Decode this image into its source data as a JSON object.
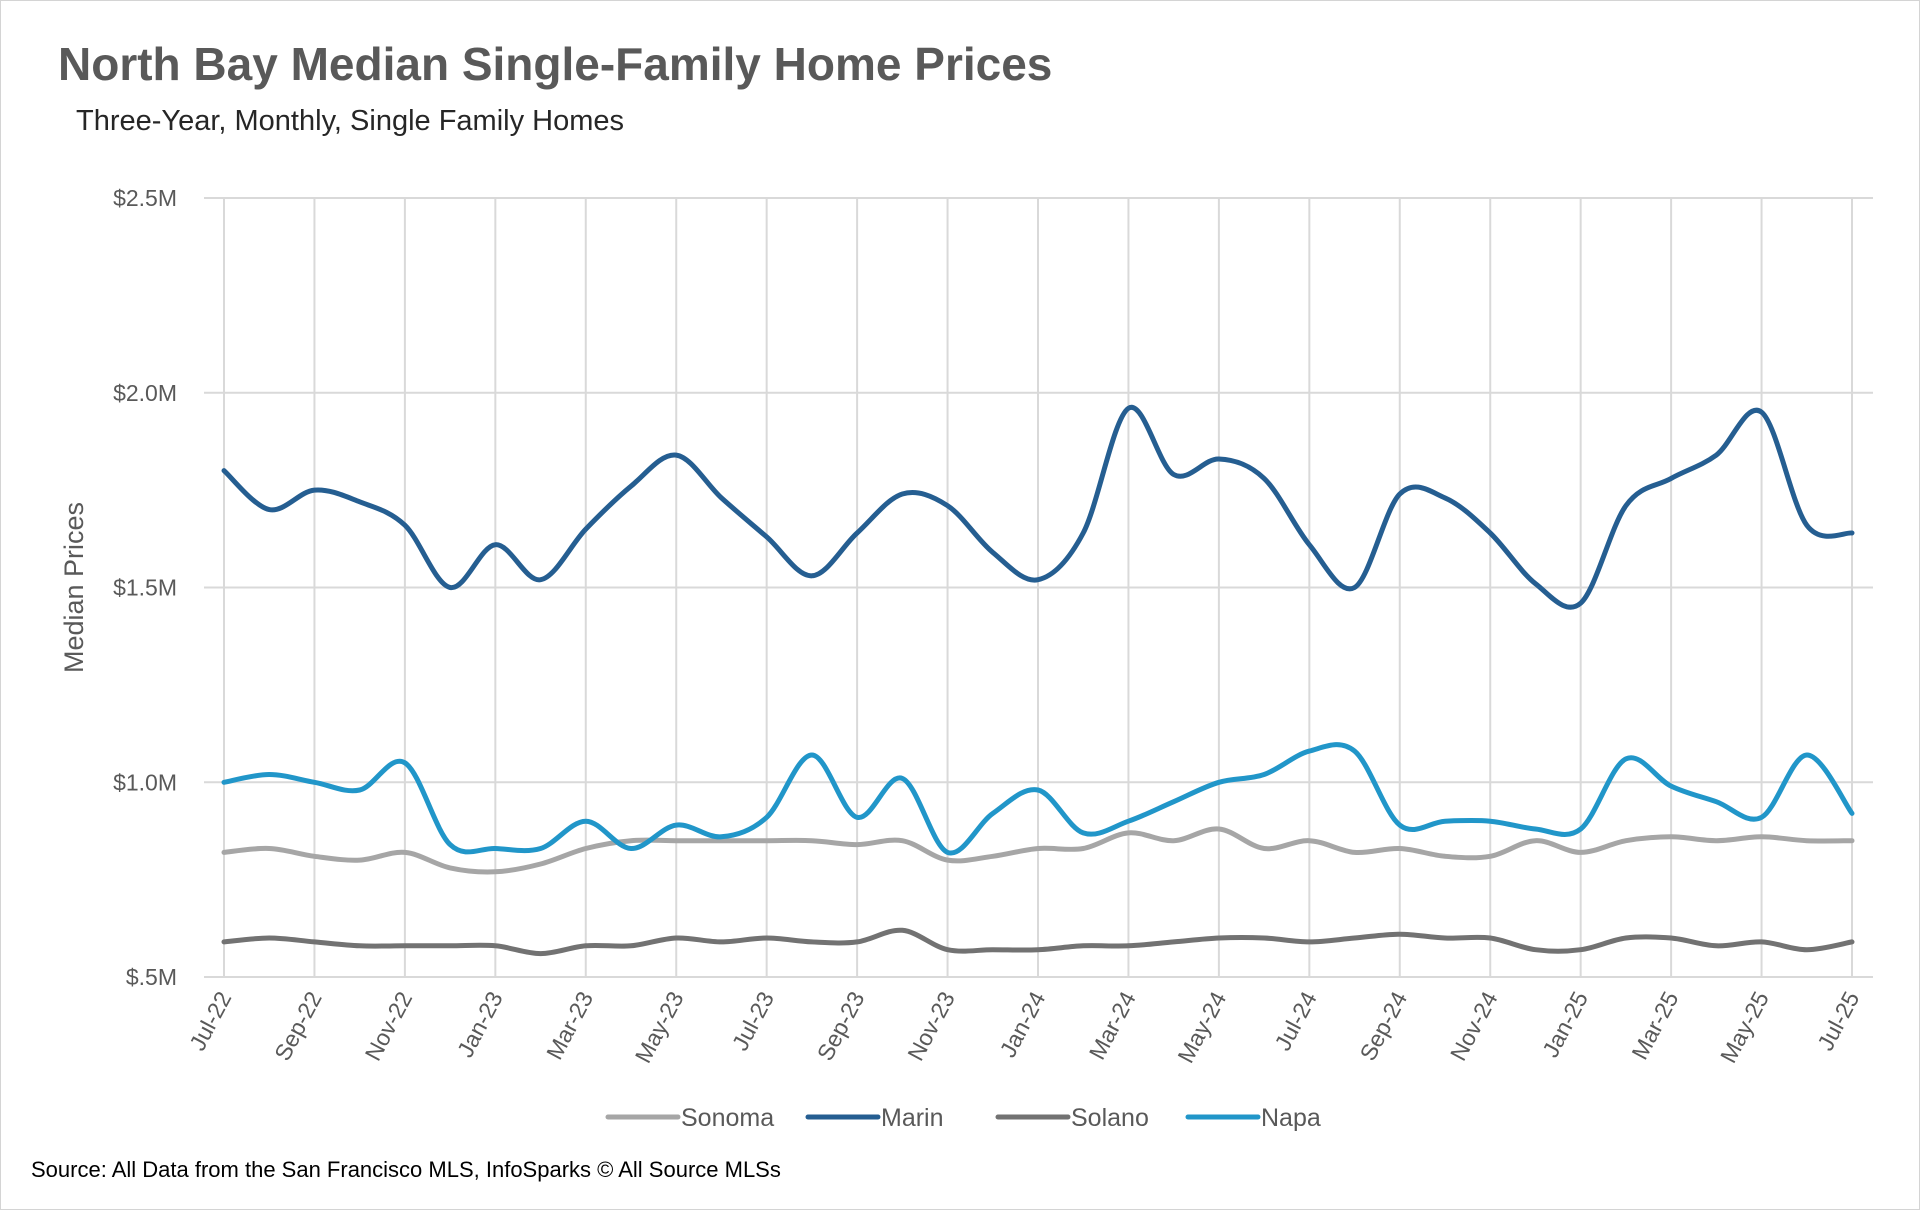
{
  "title": "North Bay Median Single-Family Home Prices",
  "subtitle": "Three-Year, Monthly, Single Family Homes",
  "source": "Source: All Data from the San Francisco MLS, InfoSparks © All Source MLSs",
  "chart_data": {
    "type": "line",
    "title": "North Bay Median Single-Family Home Prices",
    "subtitle": "Three-Year, Monthly, Single Family Homes",
    "xlabel": "",
    "ylabel": "Median Prices",
    "ylim": [
      0.5,
      2.5
    ],
    "y_unit": "millions of dollars",
    "yticks": [
      0.5,
      1.0,
      1.5,
      2.0,
      2.5
    ],
    "ytick_labels": [
      "$.5M",
      "$1.0M",
      "$1.5M",
      "$2.0M",
      "$2.5M"
    ],
    "grid": true,
    "legend_position": "bottom",
    "x": [
      "Jul-22",
      "Aug-22",
      "Sep-22",
      "Oct-22",
      "Nov-22",
      "Dec-22",
      "Jan-23",
      "Feb-23",
      "Mar-23",
      "Apr-23",
      "May-23",
      "Jun-23",
      "Jul-23",
      "Aug-23",
      "Sep-23",
      "Oct-23",
      "Nov-23",
      "Dec-23",
      "Jan-24",
      "Feb-24",
      "Mar-24",
      "Apr-24",
      "May-24",
      "Jun-24",
      "Jul-24",
      "Aug-24",
      "Sep-24",
      "Oct-24",
      "Nov-24",
      "Dec-24",
      "Jan-25",
      "Feb-25",
      "Mar-25",
      "Apr-25",
      "May-25",
      "Jun-25",
      "Jul-25"
    ],
    "xtick_labels": [
      "Jul-22",
      "Sep-22",
      "Nov-22",
      "Jan-23",
      "Mar-23",
      "May-23",
      "Jul-23",
      "Sep-23",
      "Nov-23",
      "Jan-24",
      "Mar-24",
      "May-24",
      "Jul-24",
      "Sep-24",
      "Nov-24",
      "Jan-25",
      "Mar-25",
      "May-25",
      "Jul-25"
    ],
    "series": [
      {
        "name": "Sonoma",
        "color": "#a6a6a6",
        "values": [
          0.82,
          0.83,
          0.81,
          0.8,
          0.82,
          0.78,
          0.77,
          0.79,
          0.83,
          0.85,
          0.85,
          0.85,
          0.85,
          0.85,
          0.84,
          0.85,
          0.8,
          0.81,
          0.83,
          0.83,
          0.87,
          0.85,
          0.88,
          0.83,
          0.85,
          0.82,
          0.83,
          0.81,
          0.81,
          0.85,
          0.82,
          0.85,
          0.86,
          0.85,
          0.86,
          0.85,
          0.85
        ]
      },
      {
        "name": "Marin",
        "color": "#255e91",
        "values": [
          1.8,
          1.7,
          1.75,
          1.72,
          1.66,
          1.5,
          1.61,
          1.52,
          1.65,
          1.76,
          1.84,
          1.73,
          1.63,
          1.53,
          1.64,
          1.74,
          1.71,
          1.59,
          1.52,
          1.64,
          1.96,
          1.79,
          1.83,
          1.78,
          1.61,
          1.5,
          1.74,
          1.73,
          1.64,
          1.51,
          1.46,
          1.71,
          1.78,
          1.84,
          1.95,
          1.66,
          1.64
        ]
      },
      {
        "name": "Solano",
        "color": "#727272",
        "values": [
          0.59,
          0.6,
          0.59,
          0.58,
          0.58,
          0.58,
          0.58,
          0.56,
          0.58,
          0.58,
          0.6,
          0.59,
          0.6,
          0.59,
          0.59,
          0.62,
          0.57,
          0.57,
          0.57,
          0.58,
          0.58,
          0.59,
          0.6,
          0.6,
          0.59,
          0.6,
          0.61,
          0.6,
          0.6,
          0.57,
          0.57,
          0.6,
          0.6,
          0.58,
          0.59,
          0.57,
          0.59
        ]
      },
      {
        "name": "Napa",
        "color": "#2196c9",
        "values": [
          1.0,
          1.02,
          1.0,
          0.98,
          1.05,
          0.84,
          0.83,
          0.83,
          0.9,
          0.83,
          0.89,
          0.86,
          0.91,
          1.07,
          0.91,
          1.01,
          0.82,
          0.92,
          0.98,
          0.87,
          0.9,
          0.95,
          1.0,
          1.02,
          1.08,
          1.08,
          0.89,
          0.9,
          0.9,
          0.88,
          0.88,
          1.06,
          0.99,
          0.95,
          0.91,
          1.07,
          0.92
        ]
      }
    ]
  }
}
